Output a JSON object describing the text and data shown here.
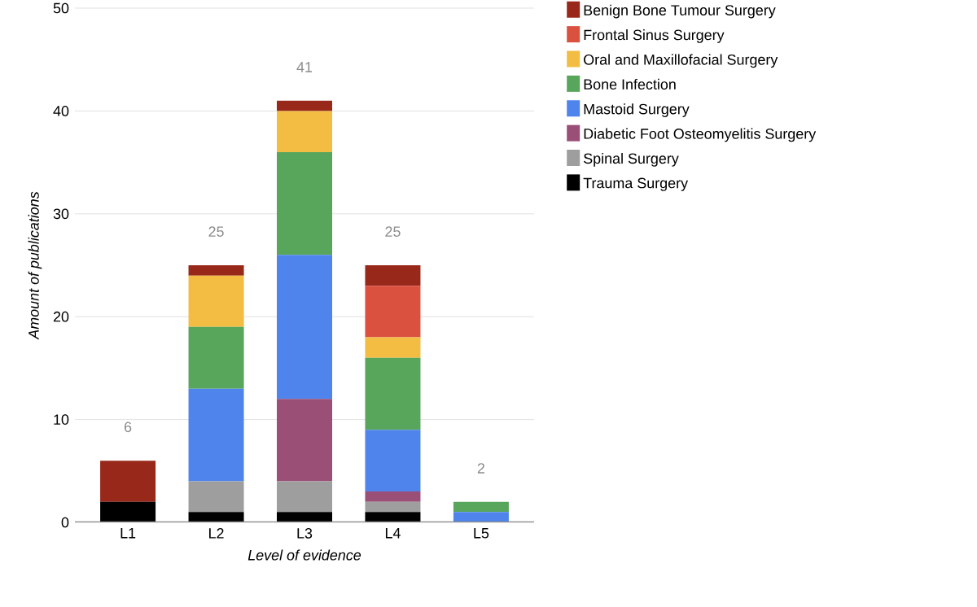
{
  "chart_data": {
    "type": "bar",
    "stacked": true,
    "xlabel": "Level of evidence",
    "ylabel": "Amount of publications",
    "categories": [
      "L1",
      "L2",
      "L3",
      "L4",
      "L5"
    ],
    "series": [
      {
        "name": "Trauma Surgery",
        "color": "#000000",
        "values": [
          2,
          1,
          1,
          1,
          0
        ]
      },
      {
        "name": "Spinal Surgery",
        "color": "#9e9e9e",
        "values": [
          0,
          3,
          3,
          1,
          0
        ]
      },
      {
        "name": "Diabetic Foot Osteomyelitis Surgery",
        "color": "#9a4f77",
        "values": [
          0,
          0,
          8,
          1,
          0
        ]
      },
      {
        "name": "Mastoid Surgery",
        "color": "#4e84ec",
        "values": [
          0,
          9,
          14,
          6,
          1
        ]
      },
      {
        "name": "Bone Infection",
        "color": "#58a55c",
        "values": [
          0,
          6,
          10,
          7,
          1
        ]
      },
      {
        "name": "Oral and Maxillofacial Surgery",
        "color": "#f2bd42",
        "values": [
          0,
          5,
          4,
          2,
          0
        ]
      },
      {
        "name": "Frontal Sinus Surgery",
        "color": "#db5140",
        "values": [
          0,
          0,
          0,
          5,
          0
        ]
      },
      {
        "name": "Benign Bone Tumour Surgery",
        "color": "#98281a",
        "values": [
          4,
          1,
          1,
          2,
          0
        ]
      }
    ],
    "totals": [
      "6",
      "25",
      "41",
      "25",
      "2"
    ],
    "ylim": [
      0,
      50
    ],
    "yticks": [
      0,
      10,
      20,
      30,
      40,
      50
    ],
    "grid": "y",
    "legend": "right"
  }
}
